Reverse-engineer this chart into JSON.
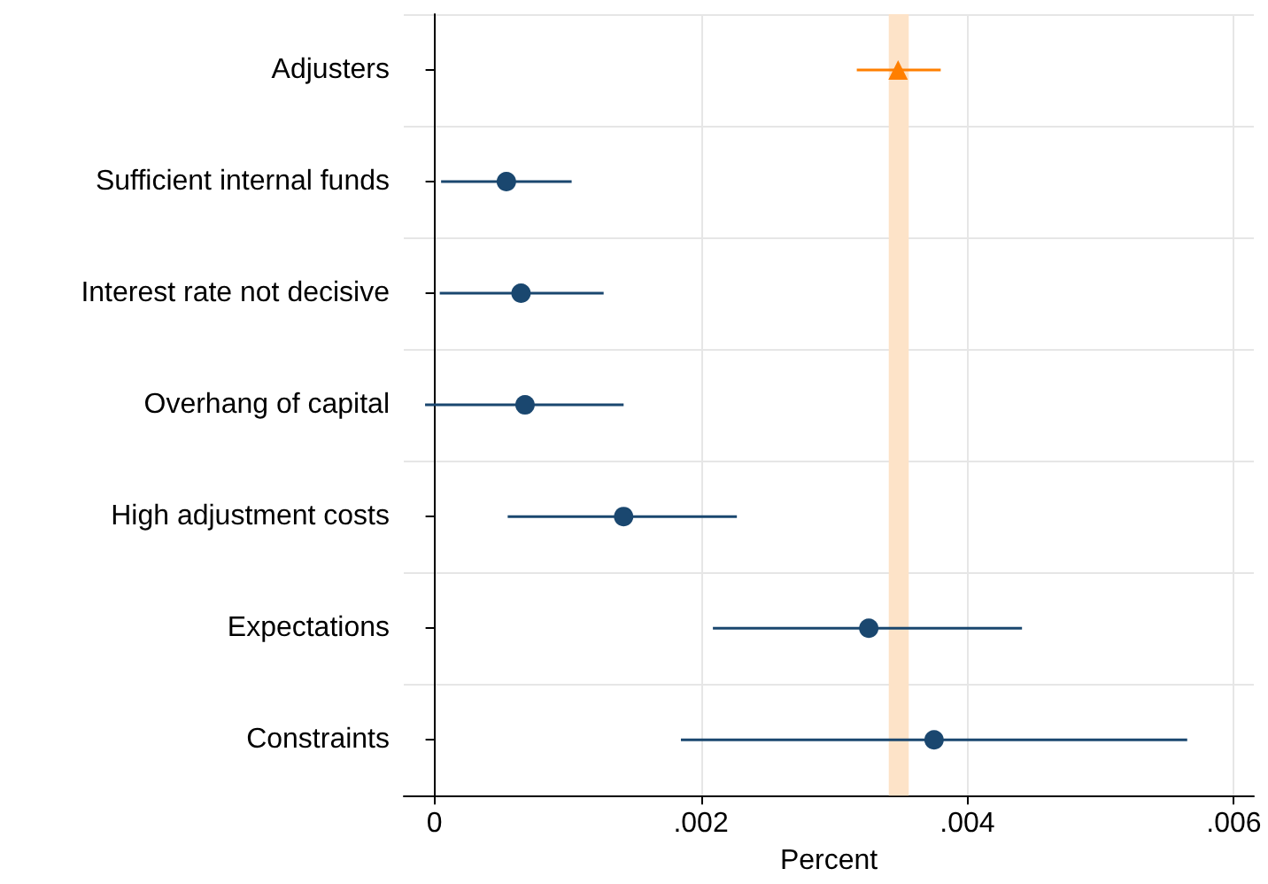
{
  "chart_data": {
    "type": "scatter",
    "orientation": "horizontal",
    "xlabel": "Percent",
    "categories": [
      "Adjusters",
      "Sufficient internal funds",
      "Interest rate not decisive",
      "Overhang of capital",
      "High adjustment costs",
      "Expectations",
      "Constraints"
    ],
    "series": [
      {
        "color": "#ff7f00",
        "marker": "triangle",
        "values": [
          0.00348,
          null,
          null,
          null,
          null,
          null,
          null
        ],
        "errors": [
          [
            0.00317,
            0.0038
          ],
          null,
          null,
          null,
          null,
          null,
          null
        ]
      },
      {
        "color": "#1a476f",
        "marker": "circle",
        "values": [
          null,
          0.00054,
          0.00065,
          0.00068,
          0.00142,
          0.00326,
          0.00375
        ],
        "errors": [
          null,
          [
            5e-05,
            0.00103
          ],
          [
            4e-05,
            0.00127
          ],
          [
            -7e-05,
            0.00142
          ],
          [
            0.00055,
            0.00227
          ],
          [
            0.00209,
            0.00441
          ],
          [
            0.00185,
            0.00565
          ]
        ]
      }
    ],
    "xlim": [
      -0.00023,
      0.00615
    ],
    "xticks": [
      {
        "value": 0,
        "label": "0"
      },
      {
        "value": 0.002,
        "label": ".002"
      },
      {
        "value": 0.004,
        "label": ".004"
      },
      {
        "value": 0.006,
        "label": ".006"
      }
    ],
    "bands": [
      {
        "axis": "x",
        "from": 0.00341,
        "to": 0.00356,
        "color": "#fde3c8"
      }
    ],
    "grid": true
  }
}
